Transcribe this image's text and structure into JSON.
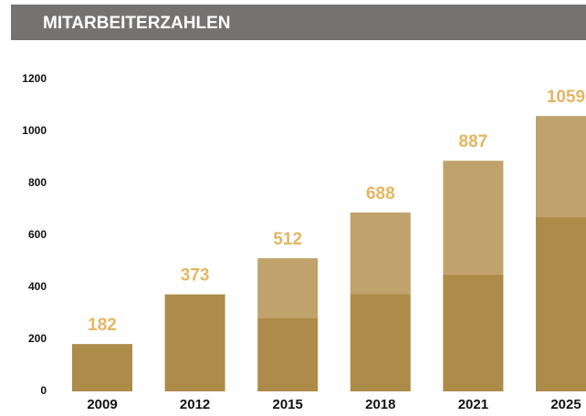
{
  "chart_data": {
    "type": "stacked_bar",
    "title": "MITARBEITERZAHLEN",
    "categories": [
      "2009",
      "2012",
      "2015",
      "2018",
      "2021",
      "2025"
    ],
    "series": [
      {
        "color": "#ad8c4a",
        "values": [
          182,
          373,
          283,
          375,
          450,
          670
        ]
      },
      {
        "color": "#c0a26c",
        "values": [
          0,
          0,
          229,
          313,
          437,
          389
        ]
      }
    ],
    "totals": [
      182,
      373,
      512,
      688,
      887,
      1059
    ],
    "ylim": [
      0,
      1200
    ],
    "yticks": [
      0,
      200,
      400,
      600,
      800,
      1000,
      1200
    ],
    "grid": false
  }
}
